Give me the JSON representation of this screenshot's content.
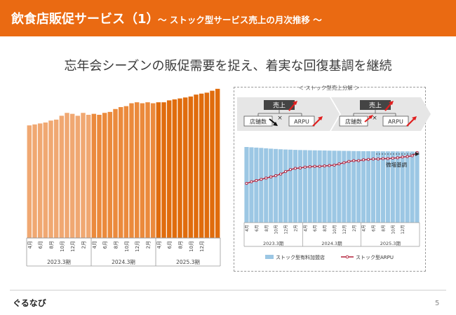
{
  "header": {
    "title": "飲食店販促サービス（1）",
    "subtitle": "〜 ストック型サービス売上の月次推移 〜"
  },
  "headline": "忘年会シーズンの販促需要を捉え、着実な回復基調を継続",
  "panel": {
    "caption": "＜ ストック型売上分解 ＞",
    "uriage_label": "売上",
    "stores_label": "店舗数",
    "arpu_label": "ARPU",
    "annotation": "微増基調",
    "legend_bar": "ストック型有料加盟店",
    "legend_line": "ストック型ARPU"
  },
  "footer": {
    "logo": "ぐるなび",
    "page": "5"
  },
  "colors": {
    "header": "#ea6a12",
    "fy2023": "#f0a872",
    "fy2024": "#eb8a3c",
    "fy2025": "#e06c0d",
    "right_bar": "#9cc7e4",
    "right_line": "#b3203a",
    "arrow_red": "#e02020"
  },
  "chart_data": [
    {
      "type": "bar",
      "title": "",
      "month_tick_labels": [
        "4月",
        "6月",
        "8月",
        "10月",
        "12月",
        "2月",
        "4月",
        "6月",
        "8月",
        "10月",
        "12月",
        "2月",
        "4月",
        "6月",
        "8月",
        "10月",
        "12月"
      ],
      "fiscal_years": [
        "2023.3期",
        "2024.3期",
        "2025.3期"
      ],
      "series": [
        {
          "period": "2023.3期",
          "values": [
            58.5,
            59.0,
            59.5,
            60.0,
            61.0,
            61.5,
            63.5,
            65.0,
            64.5,
            63.5,
            65.0,
            64.0
          ]
        },
        {
          "period": "2024.3期",
          "values": [
            64.5,
            64.0,
            65.0,
            65.5,
            67.0,
            68.0,
            68.5,
            70.0,
            70.5,
            70.0,
            70.5,
            70.0
          ]
        },
        {
          "period": "2025.3期",
          "values": [
            70.5,
            70.5,
            71.5,
            72.0,
            72.5,
            73.0,
            73.5,
            74.5,
            75.0,
            75.5,
            76.5,
            77.5
          ]
        }
      ],
      "ylim": [
        0,
        80
      ]
    },
    {
      "type": "bar+line",
      "month_tick_labels": [
        "4月",
        "6月",
        "8月",
        "10月",
        "12月",
        "2月",
        "4月",
        "6月",
        "8月",
        "10月",
        "12月",
        "2月",
        "4月",
        "6月",
        "8月",
        "10月",
        "12月"
      ],
      "fiscal_years": [
        "2023.3期",
        "2024.3期",
        "2025.3期"
      ],
      "bars_name": "ストック型有料加盟店",
      "bars": [
        100,
        99.6,
        99.2,
        98.8,
        98.3,
        97.8,
        97.4,
        97.0,
        96.7,
        96.5,
        96.2,
        96.0,
        95.9,
        95.7,
        95.6,
        95.5,
        95.4,
        95.2,
        95.1,
        95.0,
        94.9,
        94.8,
        94.7,
        94.6,
        94.5,
        94.5,
        94.4,
        94.4,
        94.3,
        94.3,
        94.3,
        94.2,
        94.2,
        94.2,
        94.1,
        94.1
      ],
      "line_name": "ストック型ARPU",
      "line": [
        80,
        80.8,
        81.4,
        82.0,
        82.6,
        83.2,
        83.8,
        84.6,
        85.8,
        86.8,
        87.4,
        87.6,
        88.0,
        88.2,
        88.4,
        88.4,
        88.6,
        88.8,
        89.0,
        89.6,
        90.2,
        90.8,
        91.2,
        91.2,
        91.6,
        91.8,
        92.0,
        92.0,
        92.2,
        92.2,
        92.4,
        92.6,
        93.0,
        93.2,
        93.6,
        95.2
      ],
      "ylim": [
        0,
        100
      ]
    }
  ]
}
